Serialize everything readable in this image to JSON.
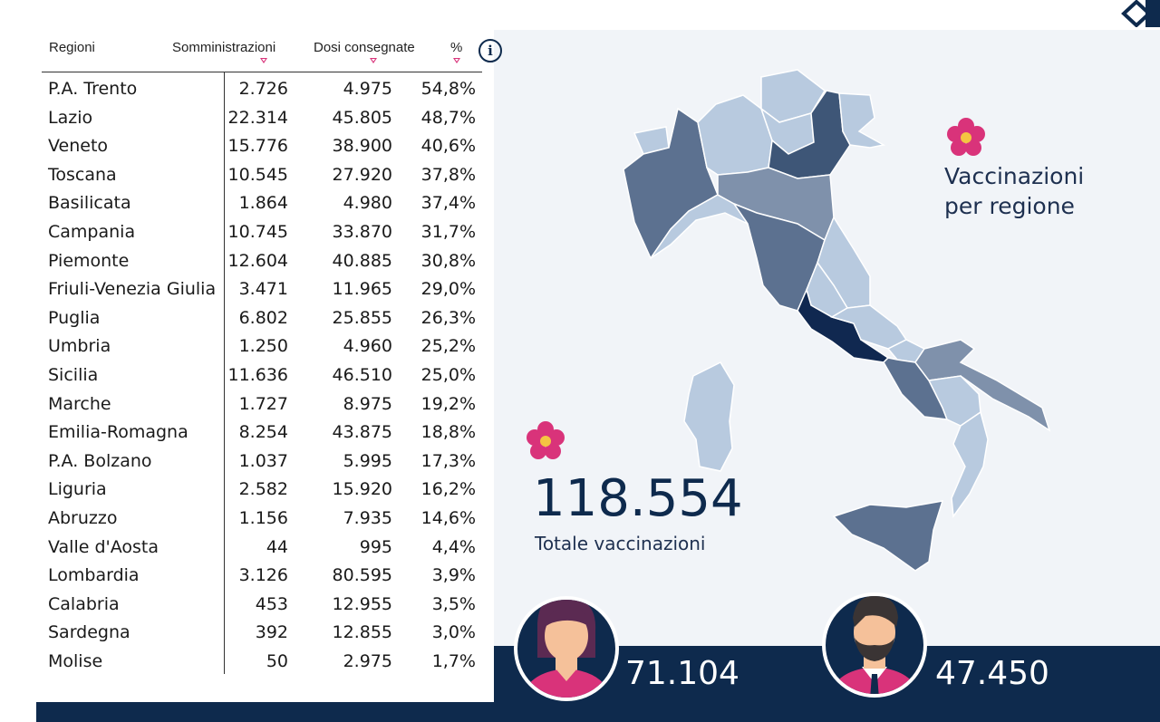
{
  "table": {
    "headers": {
      "region": "Regioni",
      "administrations": "Somministrazioni",
      "doses": "Dosi consegnate",
      "percent": "%"
    },
    "info_label": "i",
    "rows": [
      {
        "region": "P.A. Trento",
        "administrations": "2.726",
        "doses": "4.975",
        "percent": "54,8%"
      },
      {
        "region": "Lazio",
        "administrations": "22.314",
        "doses": "45.805",
        "percent": "48,7%"
      },
      {
        "region": "Veneto",
        "administrations": "15.776",
        "doses": "38.900",
        "percent": "40,6%"
      },
      {
        "region": "Toscana",
        "administrations": "10.545",
        "doses": "27.920",
        "percent": "37,8%"
      },
      {
        "region": "Basilicata",
        "administrations": "1.864",
        "doses": "4.980",
        "percent": "37,4%"
      },
      {
        "region": "Campania",
        "administrations": "10.745",
        "doses": "33.870",
        "percent": "31,7%"
      },
      {
        "region": "Piemonte",
        "administrations": "12.604",
        "doses": "40.885",
        "percent": "30,8%"
      },
      {
        "region": "Friuli-Venezia Giulia",
        "administrations": "3.471",
        "doses": "11.965",
        "percent": "29,0%"
      },
      {
        "region": "Puglia",
        "administrations": "6.802",
        "doses": "25.855",
        "percent": "26,3%"
      },
      {
        "region": "Umbria",
        "administrations": "1.250",
        "doses": "4.960",
        "percent": "25,2%"
      },
      {
        "region": "Sicilia",
        "administrations": "11.636",
        "doses": "46.510",
        "percent": "25,0%"
      },
      {
        "region": "Marche",
        "administrations": "1.727",
        "doses": "8.975",
        "percent": "19,2%"
      },
      {
        "region": "Emilia-Romagna",
        "administrations": "8.254",
        "doses": "43.875",
        "percent": "18,8%"
      },
      {
        "region": "P.A. Bolzano",
        "administrations": "1.037",
        "doses": "5.995",
        "percent": "17,3%"
      },
      {
        "region": "Liguria",
        "administrations": "2.582",
        "doses": "15.920",
        "percent": "16,2%"
      },
      {
        "region": "Abruzzo",
        "administrations": "1.156",
        "doses": "7.935",
        "percent": "14,6%"
      },
      {
        "region": "Valle d'Aosta",
        "administrations": "44",
        "doses": "995",
        "percent": "4,4%"
      },
      {
        "region": "Lombardia",
        "administrations": "3.126",
        "doses": "80.595",
        "percent": "3,9%"
      },
      {
        "region": "Calabria",
        "administrations": "453",
        "doses": "12.955",
        "percent": "3,5%"
      },
      {
        "region": "Sardegna",
        "administrations": "392",
        "doses": "12.855",
        "percent": "3,0%"
      },
      {
        "region": "Molise",
        "administrations": "50",
        "doses": "2.975",
        "percent": "1,7%"
      }
    ]
  },
  "map_title_line1": "Vaccinazioni",
  "map_title_line2": "per regione",
  "total": {
    "value": "118.554",
    "label": "Totale vaccinazioni"
  },
  "women": {
    "value": "71.104"
  },
  "men": {
    "value": "47.450"
  },
  "colors": {
    "navy": "#0e2a4d",
    "accent_pink": "#d9337a",
    "panel_bg": "#f1f4f8",
    "map_dark": "#102850",
    "map_mid": "#5c7190",
    "map_light": "#b8cadf"
  },
  "icons": [
    "info-icon",
    "flower-icon",
    "woman-avatar-icon",
    "man-avatar-icon",
    "corner-logo-icon"
  ]
}
